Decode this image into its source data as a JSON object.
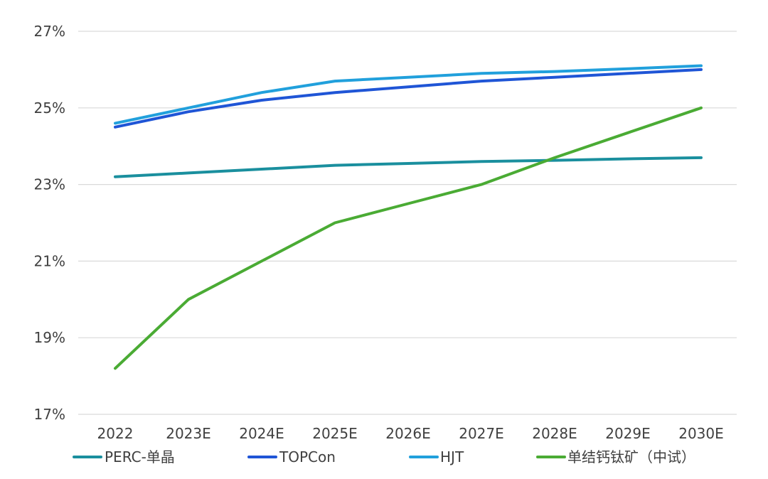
{
  "chart_data": {
    "type": "line",
    "categories": [
      "2022",
      "2023E",
      "2024E",
      "2025E",
      "2026E",
      "2027E",
      "2028E",
      "2029E",
      "2030E"
    ],
    "y_ticks": [
      "17%",
      "19%",
      "21%",
      "23%",
      "25%",
      "27%"
    ],
    "y_tick_values": [
      17,
      19,
      21,
      23,
      25,
      27
    ],
    "ylim": [
      17,
      27
    ],
    "grid": true,
    "legend_position": "bottom",
    "series": [
      {
        "name": "PERC-单晶",
        "color": "#1a8f9e",
        "values": [
          23.2,
          23.3,
          23.4,
          23.5,
          23.55,
          23.6,
          23.63,
          23.67,
          23.7
        ]
      },
      {
        "name": "TOPCon",
        "color": "#1f55d6",
        "values": [
          24.5,
          24.9,
          25.2,
          25.4,
          25.55,
          25.7,
          25.8,
          25.9,
          26.0
        ]
      },
      {
        "name": "HJT",
        "color": "#21a0dc",
        "values": [
          24.6,
          25.0,
          25.4,
          25.7,
          25.8,
          25.9,
          25.95,
          26.02,
          26.1
        ]
      },
      {
        "name": "单结钙钛矿（中试）",
        "color": "#4aab34",
        "values": [
          18.2,
          20.0,
          21.0,
          22.0,
          22.5,
          23.0,
          23.7,
          24.35,
          25.0
        ]
      }
    ]
  }
}
